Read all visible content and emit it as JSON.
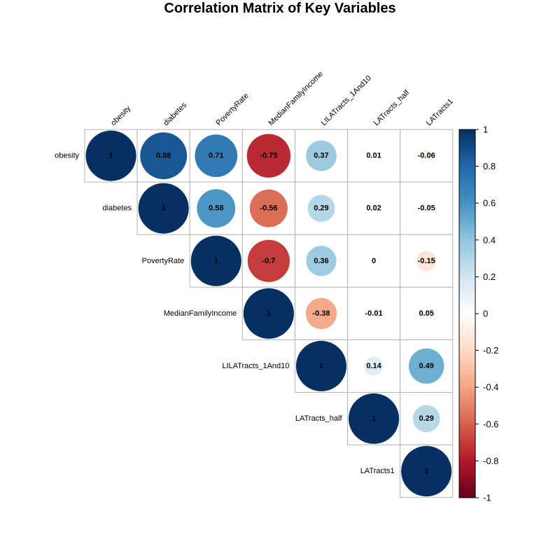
{
  "chart_data": {
    "type": "heatmap",
    "title": "Correlation Matrix of Key Variables",
    "variables": [
      "obesity",
      "diabetes",
      "PovertyRate",
      "MedianFamilyIncome",
      "LILATracts_1And10",
      "LATracts_half",
      "LATracts1"
    ],
    "matrix_upper": [
      [
        1,
        0.86,
        0.71,
        -0.75,
        0.37,
        0.01,
        -0.06
      ],
      [
        null,
        1,
        0.58,
        -0.56,
        0.29,
        0.02,
        -0.05
      ],
      [
        null,
        null,
        1,
        -0.7,
        0.36,
        0,
        -0.15
      ],
      [
        null,
        null,
        null,
        1,
        -0.38,
        -0.01,
        0.05
      ],
      [
        null,
        null,
        null,
        null,
        1,
        0.14,
        0.49
      ],
      [
        null,
        null,
        null,
        null,
        null,
        1,
        0.29
      ],
      [
        null,
        null,
        null,
        null,
        null,
        null,
        1
      ]
    ],
    "colorbar": {
      "range": [
        -1,
        1
      ],
      "ticks": [
        1,
        0.8,
        0.6,
        0.4,
        0.2,
        0,
        -0.2,
        -0.4,
        -0.6,
        -0.8,
        -1
      ]
    },
    "colors": {
      "negative_end": "#67001F",
      "positive_end": "#053061",
      "grid": "#b3b3b3"
    },
    "marker": "circle",
    "layout": "upper-triangle",
    "legend_placement": "right"
  }
}
